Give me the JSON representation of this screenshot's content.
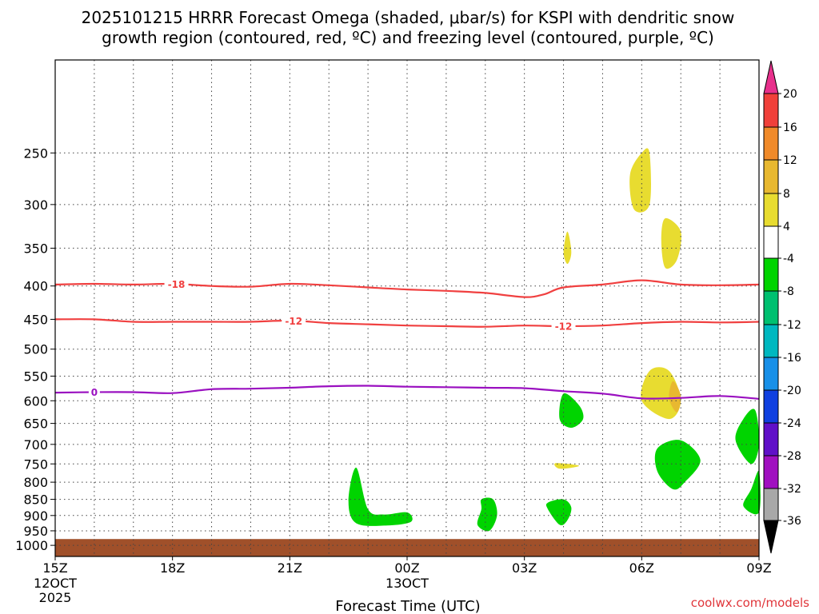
{
  "chart_data": {
    "type": "time-height contour",
    "title_line1": "2025101215 HRRR Forecast Omega (shaded, μbar/s) for KSPI with dendritic snow",
    "title_line2": "growth region (contoured, red, ºC) and freezing level (contoured, purple, ºC)",
    "xlabel": "Forecast Time (UTC)",
    "x_ticks": [
      {
        "hour": 0,
        "label": "15Z"
      },
      {
        "hour": 3,
        "label": "18Z"
      },
      {
        "hour": 6,
        "label": "21Z"
      },
      {
        "hour": 9,
        "label": "00Z"
      },
      {
        "hour": 12,
        "label": "03Z"
      },
      {
        "hour": 15,
        "label": "06Z"
      },
      {
        "hour": 18,
        "label": "09Z"
      }
    ],
    "date_labels": [
      {
        "hour": 0,
        "lines": [
          "12OCT",
          "2025"
        ]
      },
      {
        "hour": 9,
        "lines": [
          "13OCT"
        ]
      }
    ],
    "y_ticks": [
      250,
      300,
      350,
      400,
      450,
      500,
      550,
      600,
      650,
      700,
      750,
      800,
      850,
      900,
      950,
      1000
    ],
    "y_unit": "hPa",
    "y_range": [
      180,
      1040
    ],
    "x_range": [
      0,
      18
    ],
    "colorbar": {
      "labels": [
        "20",
        "16",
        "12",
        "8",
        "4",
        "-4",
        "-8",
        "-12",
        "-16",
        "-20",
        "-24",
        "-28",
        "-32",
        "-36"
      ],
      "colors": [
        "#e8308c",
        "#f0403a",
        "#f08a2a",
        "#e8b830",
        "#e8dc30",
        "#ffffff",
        "#00d400",
        "#00c070",
        "#00b8c0",
        "#1890e8",
        "#1040e0",
        "#6010c8",
        "#a010c0",
        "#a8a8a8",
        "#000000"
      ]
    },
    "series": [
      {
        "name": "-18 C isotherm",
        "color": "#f04040",
        "label": "-18",
        "label_hour": 3.1,
        "hours": [
          0,
          1,
          2,
          3,
          4,
          5,
          6,
          7,
          8,
          9,
          10,
          11,
          12,
          12.5,
          13,
          14,
          15,
          16,
          17,
          18
        ],
        "pressure": [
          398,
          397,
          398,
          397,
          400,
          401,
          397,
          399,
          402,
          405,
          407,
          410,
          416,
          412,
          402,
          398,
          392,
          398,
          399,
          398
        ]
      },
      {
        "name": "-12 C isotherm",
        "color": "#f04040",
        "label": "-12",
        "label_hour": 6.1,
        "label2_hour": 13.0,
        "hours": [
          0,
          1,
          2,
          3,
          4,
          5,
          6,
          7,
          8,
          9,
          10,
          11,
          12,
          13,
          14,
          15,
          16,
          17,
          18
        ],
        "pressure": [
          450,
          450,
          454,
          454,
          454,
          454,
          452,
          456,
          458,
          460,
          461,
          462,
          460,
          461,
          460,
          456,
          454,
          455,
          454
        ]
      },
      {
        "name": "0 C freezing level",
        "color": "#9a10c0",
        "label": "0",
        "label_hour": 1.0,
        "hours": [
          0,
          1,
          2,
          3,
          4,
          5,
          6,
          7,
          8,
          9,
          10,
          11,
          12,
          13,
          14,
          15,
          16,
          17,
          18
        ],
        "pressure": [
          583,
          582,
          582,
          584,
          576,
          575,
          573,
          570,
          569,
          571,
          572,
          573,
          574,
          580,
          585,
          595,
          594,
          590,
          596
        ]
      }
    ],
    "omega_regions": [
      {
        "sign": "upward",
        "value": -6,
        "hours": [
          7.7,
          8.0,
          8.4,
          9.0,
          9.1,
          8.5,
          7.7,
          7.5
        ],
        "pressure": [
          760,
          880,
          897,
          890,
          920,
          932,
          925,
          855
        ]
      },
      {
        "sign": "upward",
        "value": -6,
        "hours": [
          10.9,
          11.2,
          11.3,
          11.1,
          10.8,
          10.9
        ],
        "pressure": [
          850,
          850,
          900,
          950,
          930,
          880
        ]
      },
      {
        "sign": "upward",
        "value": -6,
        "hours": [
          12.6,
          13.0,
          13.2,
          13.1,
          12.9,
          12.6
        ],
        "pressure": [
          860,
          850,
          875,
          915,
          930,
          880
        ]
      },
      {
        "sign": "upward",
        "value": -6,
        "hours": [
          13.0,
          13.4,
          13.5,
          13.2,
          12.9
        ],
        "pressure": [
          585,
          610,
          640,
          660,
          640
        ]
      },
      {
        "sign": "upward",
        "value": -6,
        "hours": [
          15.4,
          16.0,
          16.5,
          16.1,
          15.8,
          15.4
        ],
        "pressure": [
          710,
          690,
          740,
          800,
          820,
          770
        ]
      },
      {
        "sign": "upward",
        "value": -6,
        "hours": [
          17.6,
          17.9,
          18.0,
          17.8,
          17.4
        ],
        "pressure": [
          640,
          620,
          700,
          750,
          690
        ]
      },
      {
        "sign": "upward",
        "value": -6,
        "hours": [
          18.0,
          18.0,
          17.6,
          17.8
        ],
        "pressure": [
          770,
          890,
          870,
          820
        ]
      },
      {
        "sign": "downward",
        "value": 6,
        "hours": [
          15.0,
          15.2,
          15.2,
          14.8,
          14.7
        ],
        "pressure": [
          250,
          250,
          300,
          305,
          270
        ]
      },
      {
        "sign": "downward",
        "value": 6,
        "hours": [
          15.6,
          16.0,
          15.9,
          15.6,
          15.5
        ],
        "pressure": [
          315,
          330,
          365,
          375,
          340
        ]
      },
      {
        "sign": "downward",
        "value": 6,
        "hours": [
          13.1,
          13.2,
          13.1,
          13.0
        ],
        "pressure": [
          330,
          355,
          370,
          355
        ]
      },
      {
        "sign": "downward",
        "value": 6,
        "hours": [
          15.2,
          15.7,
          16.0,
          15.7,
          15.0
        ],
        "pressure": [
          540,
          540,
          600,
          640,
          600
        ]
      },
      {
        "sign": "downward",
        "value": 6,
        "hours": [
          12.8,
          13.4,
          12.9
        ],
        "pressure": [
          748,
          755,
          763
        ]
      },
      {
        "sign": "downward",
        "value": 10,
        "hours": [
          15.8,
          16.0,
          15.9,
          15.7
        ],
        "pressure": [
          560,
          590,
          625,
          595
        ]
      }
    ],
    "surface_pressure_hpa": 978
  },
  "credit": "coolwx.com/models"
}
